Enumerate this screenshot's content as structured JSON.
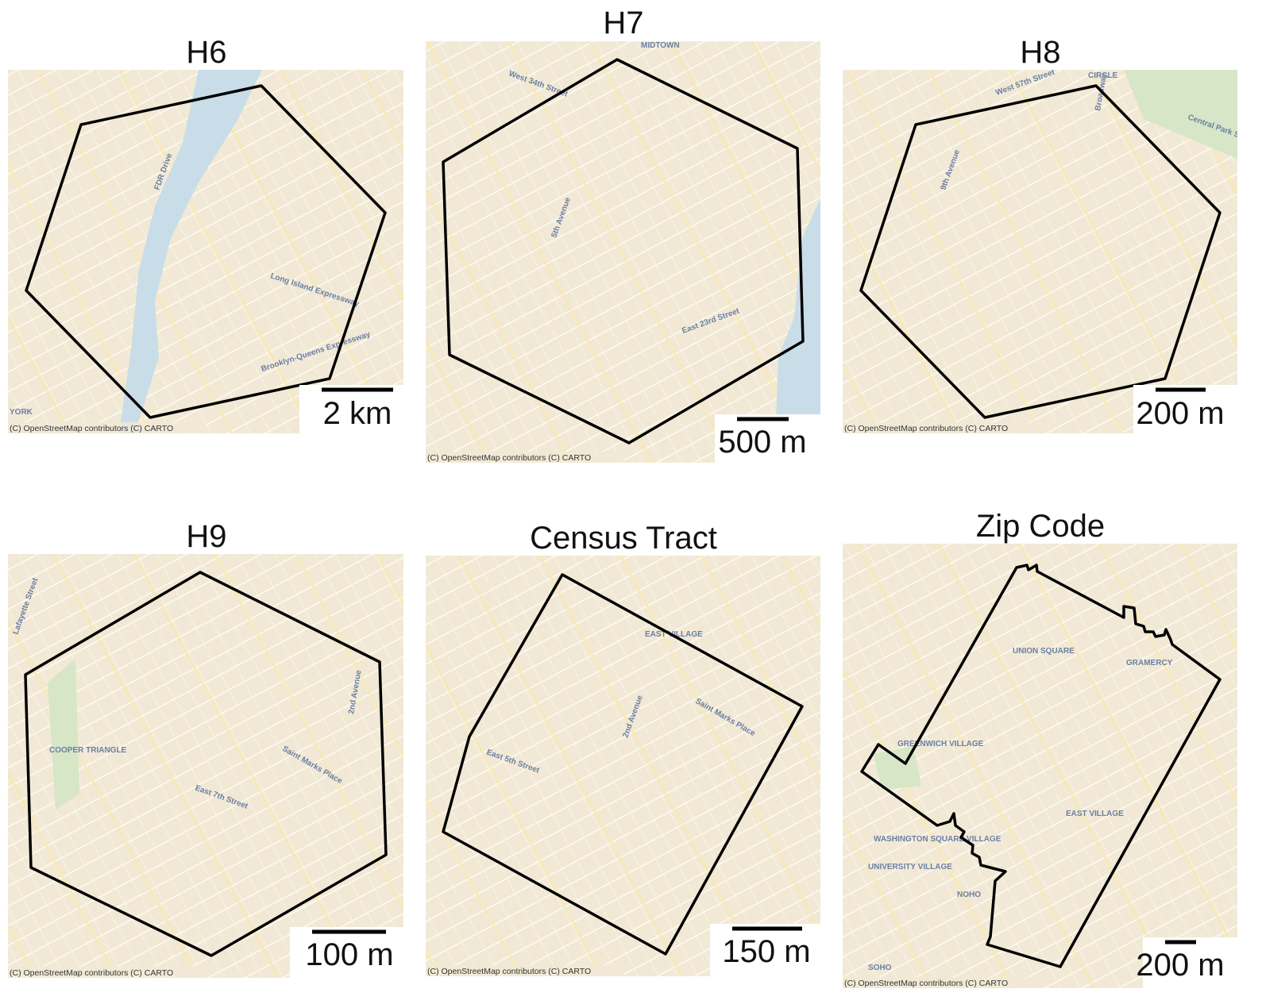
{
  "panels": [
    {
      "title": "H6",
      "scale_label": "2 km",
      "attribution": "(C) OpenStreetMap contributors (C) CARTO",
      "labels": [
        "YORK",
        "Long Island Expressway",
        "Brooklyn-Queens Expressway",
        "FDR Drive"
      ]
    },
    {
      "title": "H7",
      "scale_label": "500 m",
      "attribution": "(C) OpenStreetMap contributors (C) CARTO",
      "labels": [
        "MIDTOWN",
        "5th Avenue",
        "East 23rd Street",
        "West 34th Street"
      ]
    },
    {
      "title": "H8",
      "scale_label": "200 m",
      "attribution": "(C) OpenStreetMap contributors (C) CARTO",
      "labels": [
        "CIRCLE",
        "Central Park South",
        "West 57th Street",
        "9th Avenue",
        "Broadway"
      ]
    },
    {
      "title": "H9",
      "scale_label": "100 m",
      "attribution": "(C) OpenStreetMap contributors (C) CARTO",
      "labels": [
        "Lafayette Street",
        "COOPER TRIANGLE",
        "Saint Marks Place",
        "East 7th Street",
        "2nd Avenue"
      ]
    },
    {
      "title": "Census Tract",
      "scale_label": "150 m",
      "attribution": "(C) OpenStreetMap contributors (C) CARTO",
      "labels": [
        "EAST VILLAGE",
        "2nd Avenue",
        "Saint Marks Place",
        "East 5th Street"
      ]
    },
    {
      "title": "Zip Code",
      "scale_label": "200 m",
      "attribution": "(C) OpenStreetMap contributors (C) CARTO",
      "labels": [
        "UNION SQUARE",
        "GRAMERCY",
        "EAST VILLAGE",
        "NOHO",
        "SOHO",
        "WASHINGTON SQUARE VILLAGE",
        "UNIVERSITY VILLAGE",
        "GREENWICH VILLAGE"
      ]
    }
  ]
}
